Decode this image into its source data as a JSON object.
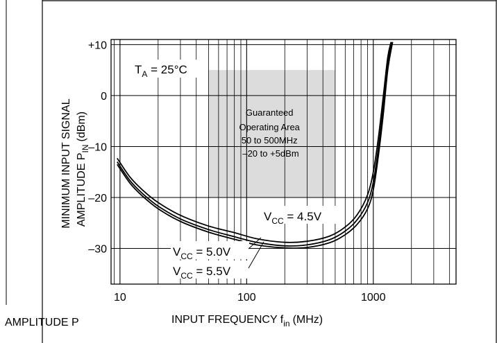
{
  "stray_label": "AMPLITUDE P",
  "chart_data": {
    "type": "line",
    "title": "",
    "xlabel": {
      "main": "INPUT FREQUENCY f",
      "sub": "in",
      "unit": "(MHz)"
    },
    "ylabel": {
      "line1": "MINIMUM INPUT SIGNAL",
      "line2_main": "AMPLITUDE P",
      "line2_sub": "IN",
      "line2_unit": "(dBm)"
    },
    "x_scale": "log",
    "xlim": [
      8.5,
      4500
    ],
    "ylim": [
      -37,
      11
    ],
    "x_ticks": [
      {
        "value": 10,
        "label": "10"
      },
      {
        "value": 100,
        "label": "100"
      },
      {
        "value": 1000,
        "label": "1000"
      }
    ],
    "y_ticks": [
      {
        "value": 10,
        "label": "+10"
      },
      {
        "value": 0,
        "label": "0"
      },
      {
        "value": -10,
        "label": "–10"
      },
      {
        "value": -20,
        "label": "–20"
      },
      {
        "value": -30,
        "label": "–30"
      }
    ],
    "grid": true,
    "temperature_label": {
      "main": "T",
      "sub": "A",
      "rest": " = 25°C"
    },
    "shaded_region": {
      "x": [
        50,
        500
      ],
      "y": [
        -20,
        5
      ],
      "color": "#dcdcdc",
      "text": [
        "Guaranteed",
        "Operating Area",
        "50 to 500MHz",
        "–20 to +5dBm"
      ]
    },
    "series": [
      {
        "name": "V_CC = 4.5V",
        "label_parts": {
          "main": "V",
          "sub": "CC",
          "rest": " = 4.5V"
        },
        "x": [
          9.5,
          12,
          15,
          20,
          30,
          50,
          80,
          120,
          200,
          300,
          450,
          600,
          750,
          900,
          1000,
          1100,
          1200,
          1300,
          1380
        ],
        "y": [
          -12.3,
          -16,
          -18.5,
          -21,
          -23.5,
          -25.6,
          -26.9,
          -28.1,
          -28.8,
          -28.6,
          -27.6,
          -25.8,
          -23.3,
          -19.5,
          -15,
          -8,
          0,
          7.5,
          10.5
        ]
      },
      {
        "name": "V_CC = 5.0V",
        "label_parts": {
          "main": "V",
          "sub": "CC",
          "rest": " = 5.0V"
        },
        "x": [
          9.5,
          12,
          15,
          20,
          30,
          50,
          80,
          120,
          200,
          300,
          450,
          600,
          750,
          900,
          1000,
          1100,
          1200,
          1300,
          1400
        ],
        "y": [
          -13,
          -16.7,
          -19.2,
          -21.7,
          -24.2,
          -26.3,
          -27.7,
          -28.8,
          -29.5,
          -29.3,
          -28.3,
          -26.6,
          -24.3,
          -21,
          -17,
          -10,
          -2,
          6.5,
          10.5
        ]
      },
      {
        "name": "V_CC = 5.5V",
        "label_parts": {
          "main": "V",
          "sub": "CC",
          "rest": " = 5.5V"
        },
        "x": [
          9.5,
          12,
          15,
          20,
          30,
          50,
          80,
          120,
          200,
          300,
          450,
          600,
          750,
          900,
          1000,
          1100,
          1200,
          1300,
          1420
        ],
        "y": [
          -13.5,
          -17.2,
          -19.7,
          -22.2,
          -24.7,
          -26.8,
          -28.2,
          -29.3,
          -29.9,
          -29.8,
          -28.9,
          -27.3,
          -25.2,
          -22.2,
          -18.5,
          -11.5,
          -3.5,
          5,
          10.5
        ]
      }
    ]
  }
}
